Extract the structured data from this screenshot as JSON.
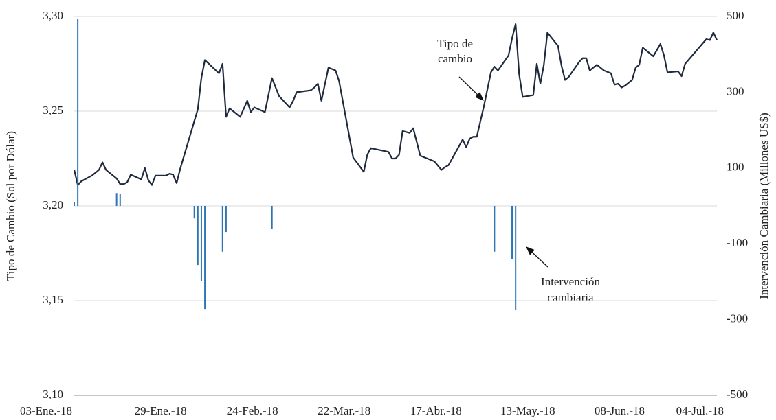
{
  "chart_data": {
    "type": "line",
    "ylabel": "Tipo de Cambio (Sol por Dólar)",
    "y2label": "Intervención Cambiaria (Millones US$)",
    "xlim": [
      "2018-01-03",
      "2018-07-04"
    ],
    "xticks": [
      {
        "value": "2018-01-03",
        "label": "03-Ene.-18"
      },
      {
        "value": "2018-01-29",
        "label": "29-Ene.-18"
      },
      {
        "value": "2018-02-24",
        "label": "24-Feb.-18"
      },
      {
        "value": "2018-03-22",
        "label": "22-Mar.-18"
      },
      {
        "value": "2018-04-17",
        "label": "17-Abr.-18"
      },
      {
        "value": "2018-05-13",
        "label": "13-May.-18"
      },
      {
        "value": "2018-06-08",
        "label": "08-Jun.-18"
      },
      {
        "value": "2018-07-04",
        "label": "04-Jul.-18"
      }
    ],
    "ylim": [
      3.1,
      3.3
    ],
    "yticks": [
      {
        "value": 3.1,
        "label": "3,10"
      },
      {
        "value": 3.15,
        "label": "3,15"
      },
      {
        "value": 3.2,
        "label": "3,20"
      },
      {
        "value": 3.25,
        "label": "3,25"
      },
      {
        "value": 3.3,
        "label": "3,30"
      }
    ],
    "y2lim": [
      -500,
      500
    ],
    "y2ticks": [
      -500,
      -300,
      -100,
      100,
      300,
      500
    ],
    "grid": true,
    "series": [
      {
        "type": "line",
        "color": "#1f2a3c",
        "x": [
          "2018-01-03",
          "2018-01-04",
          "2018-01-05",
          "2018-01-08",
          "2018-01-10",
          "2018-01-11",
          "2018-01-12",
          "2018-01-15",
          "2018-01-16",
          "2018-01-17",
          "2018-01-18",
          "2018-01-19",
          "2018-01-22",
          "2018-01-23",
          "2018-01-24",
          "2018-01-25",
          "2018-01-26",
          "2018-01-29",
          "2018-01-30",
          "2018-01-31",
          "2018-02-01",
          "2018-02-02",
          "2018-02-07",
          "2018-02-08",
          "2018-02-09",
          "2018-02-13",
          "2018-02-14",
          "2018-02-15",
          "2018-02-16",
          "2018-02-19",
          "2018-02-21",
          "2018-02-22",
          "2018-02-23",
          "2018-02-26",
          "2018-02-28",
          "2018-03-02",
          "2018-03-05",
          "2018-03-06",
          "2018-03-07",
          "2018-03-11",
          "2018-03-12",
          "2018-03-13",
          "2018-03-14",
          "2018-03-16",
          "2018-03-18",
          "2018-03-19",
          "2018-03-23",
          "2018-03-26",
          "2018-03-27",
          "2018-03-28",
          "2018-04-02",
          "2018-04-03",
          "2018-04-04",
          "2018-04-05",
          "2018-04-06",
          "2018-04-08",
          "2018-04-09",
          "2018-04-11",
          "2018-04-15",
          "2018-04-17",
          "2018-04-18",
          "2018-04-19",
          "2018-04-23",
          "2018-04-24",
          "2018-04-25",
          "2018-04-26",
          "2018-04-27",
          "2018-04-29",
          "2018-05-01",
          "2018-05-02",
          "2018-05-03",
          "2018-05-06",
          "2018-05-07",
          "2018-05-08",
          "2018-05-09",
          "2018-05-10",
          "2018-05-13",
          "2018-05-14",
          "2018-05-15",
          "2018-05-16",
          "2018-05-17",
          "2018-05-20",
          "2018-05-21",
          "2018-05-22",
          "2018-05-23",
          "2018-05-26",
          "2018-05-27",
          "2018-05-28",
          "2018-05-29",
          "2018-05-30",
          "2018-05-31",
          "2018-06-02",
          "2018-06-04",
          "2018-06-05",
          "2018-06-06",
          "2018-06-07",
          "2018-06-08",
          "2018-06-10",
          "2018-06-11",
          "2018-06-12",
          "2018-06-13",
          "2018-06-16",
          "2018-06-18",
          "2018-06-19",
          "2018-06-20",
          "2018-06-23",
          "2018-06-24",
          "2018-06-25",
          "2018-07-01",
          "2018-07-02",
          "2018-07-03",
          "2018-07-04"
        ],
        "values": [
          3.219,
          3.211,
          3.213,
          3.216,
          3.219,
          3.223,
          3.219,
          3.2145,
          3.2115,
          3.2115,
          3.2125,
          3.2165,
          3.214,
          3.22,
          3.2135,
          3.211,
          3.216,
          3.216,
          3.217,
          3.2165,
          3.212,
          3.2195,
          3.251,
          3.2675,
          3.277,
          3.27,
          3.275,
          3.247,
          3.2515,
          3.247,
          3.2555,
          3.2495,
          3.252,
          3.2495,
          3.2675,
          3.258,
          3.252,
          3.2555,
          3.26,
          3.261,
          3.2625,
          3.2645,
          3.2555,
          3.273,
          3.2715,
          3.266,
          3.2255,
          3.218,
          3.227,
          3.2305,
          3.2285,
          3.225,
          3.225,
          3.227,
          3.2395,
          3.2385,
          3.241,
          3.2265,
          3.2235,
          3.219,
          3.2205,
          3.2215,
          3.235,
          3.231,
          3.2355,
          3.2365,
          3.2365,
          3.2525,
          3.2705,
          3.2735,
          3.2715,
          3.2795,
          3.2885,
          3.296,
          3.2695,
          3.2575,
          3.2585,
          3.275,
          3.2645,
          3.2745,
          3.2915,
          3.2845,
          3.274,
          3.2665,
          3.268,
          3.276,
          3.278,
          3.278,
          3.2715,
          3.273,
          3.2745,
          3.2715,
          3.27,
          3.264,
          3.2645,
          3.2625,
          3.2635,
          3.2665,
          3.273,
          3.2745,
          3.2835,
          3.279,
          3.2855,
          3.2795,
          3.2705,
          3.271,
          3.2685,
          3.275,
          3.288,
          3.2875,
          3.2915,
          3.2875
        ]
      },
      {
        "type": "bar",
        "axis": "y2",
        "color": "#2e75b6",
        "x": [
          "2018-01-03",
          "2018-01-04",
          "2018-01-15",
          "2018-01-16",
          "2018-02-06",
          "2018-02-07",
          "2018-02-08",
          "2018-02-09",
          "2018-02-14",
          "2018-02-15",
          "2018-02-28",
          "2018-05-02",
          "2018-05-07",
          "2018-05-08"
        ],
        "values": [
          9,
          493,
          34,
          31,
          -33,
          -156,
          -199,
          -272,
          -121,
          -69,
          -60,
          -121,
          -140,
          -275
        ]
      }
    ],
    "annotations": [
      {
        "lines": [
          "Tipo de",
          "cambio"
        ]
      },
      {
        "lines": [
          "Intervención",
          "cambiaria"
        ]
      }
    ]
  }
}
